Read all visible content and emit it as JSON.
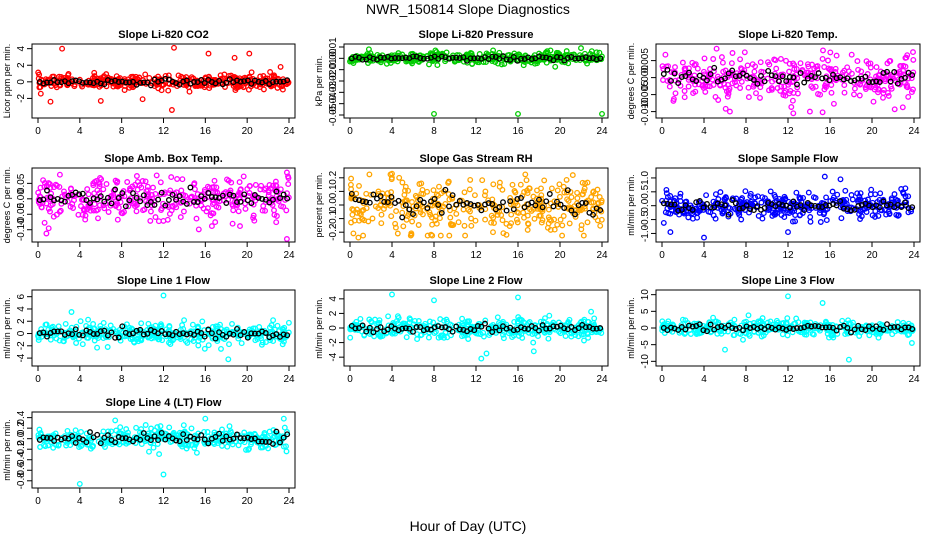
{
  "page_title": "NWR_150814  Slope Diagnostics",
  "x_axis_label": "Hour of Day (UTC)",
  "colors": {
    "co2": "#ff0000",
    "pressure": "#00cc00",
    "li820_temp": "#ff00ff",
    "box_temp": "#ff00ff",
    "rh": "#ffa500",
    "sample_flow": "#0000ff",
    "line_flow": "#00ffff",
    "overlay": "#000000"
  },
  "chart_data": [
    {
      "type": "scatter",
      "key": "co2",
      "title": "Slope Li-820 CO2",
      "xlabel": "",
      "ylabel": "Licor ppm per min.",
      "xlim": [
        0,
        24
      ],
      "ylim": [
        -4,
        4.2
      ],
      "xticks": [
        0,
        4,
        8,
        12,
        16,
        20,
        24
      ],
      "yticks": [
        -2,
        0,
        2,
        4
      ],
      "ytick_labels": [
        "-2",
        "0",
        "2",
        "4"
      ],
      "spread": 0.55,
      "series": [
        {
          "color_key": "co2",
          "values_summary": "dense scatter around 0"
        },
        {
          "color_key": "overlay"
        }
      ],
      "outliers": [
        [
          2.3,
          4.0
        ],
        [
          13,
          4.1
        ],
        [
          12.8,
          -3.4
        ],
        [
          16.3,
          3.4
        ],
        [
          20.2,
          3.4
        ],
        [
          1.2,
          -2.4
        ],
        [
          6.0,
          -2.3
        ],
        [
          10,
          -2.1
        ],
        [
          18.8,
          2.9
        ],
        [
          23.2,
          1.8
        ]
      ]
    },
    {
      "type": "scatter",
      "key": "pressure",
      "title": "Slope Li-820 Pressure",
      "xlabel": "",
      "ylabel": "kPa per min.",
      "xlim": [
        0,
        24
      ],
      "ylim": [
        -0.05,
        0.01
      ],
      "xticks": [
        0,
        4,
        8,
        12,
        16,
        20,
        24
      ],
      "yticks": [
        -0.05,
        -0.04,
        -0.03,
        -0.02,
        -0.01,
        0,
        0.01
      ],
      "ytick_labels": [
        "-0.05",
        "-0.04",
        "-0.03",
        "-0.02",
        "-0.01",
        "0.00",
        "0.01"
      ],
      "spread": 0.0035,
      "series": [
        {
          "color_key": "pressure"
        },
        {
          "color_key": "overlay"
        }
      ],
      "outliers": [
        [
          8,
          -0.049
        ],
        [
          16,
          -0.049
        ],
        [
          24,
          -0.049
        ],
        [
          1.8,
          0.008
        ],
        [
          22,
          0.009
        ]
      ]
    },
    {
      "type": "scatter",
      "key": "li820_temp",
      "title": "Slope Li-820 Temp.",
      "xlabel": "",
      "ylabel": "degrees C per min.",
      "xlim": [
        0,
        24
      ],
      "ylim": [
        -0.011,
        0.009
      ],
      "xticks": [
        0,
        4,
        8,
        12,
        16,
        20,
        24
      ],
      "yticks": [
        -0.01,
        -0.005,
        0,
        0.005
      ],
      "ytick_labels": [
        "-0.010",
        "-0.005",
        "0.000",
        "0.005"
      ],
      "spread": 0.0042,
      "series": [
        {
          "color_key": "li820_temp"
        },
        {
          "color_key": "overlay"
        }
      ],
      "outliers": [
        [
          5.2,
          0.0085
        ],
        [
          12.5,
          -0.0105
        ],
        [
          15.3,
          -0.0102
        ]
      ]
    },
    {
      "type": "scatter",
      "key": "box_temp",
      "title": "Slope Amb. Box Temp.",
      "xlabel": "",
      "ylabel": "degrees C per min.",
      "xlim": [
        0,
        24
      ],
      "ylim": [
        -0.13,
        0.09
      ],
      "xticks": [
        0,
        4,
        8,
        12,
        16,
        20,
        24
      ],
      "yticks": [
        -0.1,
        -0.05,
        0,
        0.05
      ],
      "ytick_labels": [
        "-0.10",
        "-0.05",
        "0.00",
        "0.05"
      ],
      "spread": 0.045,
      "series": [
        {
          "color_key": "box_temp"
        },
        {
          "color_key": "overlay"
        }
      ],
      "outliers": [
        [
          23.8,
          -0.13
        ],
        [
          23.8,
          0.085
        ]
      ]
    },
    {
      "type": "scatter",
      "key": "rh",
      "title": "Slope Gas Stream RH",
      "xlabel": "",
      "ylabel": "percent per min.",
      "xlim": [
        0,
        24
      ],
      "ylim": [
        -0.25,
        0.25
      ],
      "xticks": [
        0,
        4,
        8,
        12,
        16,
        20,
        24
      ],
      "yticks": [
        -0.2,
        -0.1,
        0,
        0.1,
        0.2
      ],
      "ytick_labels": [
        "-0.2",
        "-0.1",
        "0.0",
        "0.1",
        "0.2"
      ],
      "spread": 0.13,
      "series": [
        {
          "color_key": "rh"
        },
        {
          "color_key": "overlay"
        }
      ],
      "outliers": [
        [
          0.8,
          -0.24
        ],
        [
          4,
          0.23
        ]
      ]
    },
    {
      "type": "scatter",
      "key": "sample_flow",
      "title": "Slope Sample Flow",
      "xlabel": "",
      "ylabel": "ml/min per min.",
      "xlim": [
        0,
        24
      ],
      "ylim": [
        -1.2,
        1.25
      ],
      "xticks": [
        0,
        4,
        8,
        12,
        16,
        20,
        24
      ],
      "yticks": [
        -1,
        -0.5,
        0,
        0.5,
        1
      ],
      "ytick_labels": [
        "-1.0",
        "-0.5",
        "0.0",
        "0.5",
        "1.0"
      ],
      "spread": 0.32,
      "series": [
        {
          "color_key": "sample_flow"
        },
        {
          "color_key": "overlay"
        }
      ],
      "outliers": [
        [
          4,
          -1.15
        ],
        [
          0.8,
          -0.95
        ],
        [
          12,
          -0.95
        ],
        [
          15.5,
          1.05
        ],
        [
          17,
          0.95
        ]
      ]
    },
    {
      "type": "scatter",
      "key": "line1",
      "title": "Slope Line 1 Flow",
      "xlabel": "",
      "ylabel": "ml/min per min.",
      "xlim": [
        0,
        24
      ],
      "ylim": [
        -4.8,
        6.6
      ],
      "xticks": [
        0,
        4,
        8,
        12,
        16,
        20,
        24
      ],
      "yticks": [
        -4,
        -2,
        0,
        2,
        4,
        6
      ],
      "ytick_labels": [
        "-4",
        "-2",
        "0",
        "2",
        "4",
        "6"
      ],
      "spread": 1.1,
      "series": [
        {
          "color_key": "line_flow"
        },
        {
          "color_key": "overlay"
        }
      ],
      "outliers": [
        [
          12,
          6.2
        ],
        [
          18.2,
          -4.2
        ],
        [
          3.2,
          3.5
        ],
        [
          17.5,
          -2.5
        ]
      ]
    },
    {
      "type": "scatter",
      "key": "line2",
      "title": "Slope Line 2 Flow",
      "xlabel": "",
      "ylabel": "ml/min per min.",
      "xlim": [
        0,
        24
      ],
      "ylim": [
        -4.8,
        4.8
      ],
      "xticks": [
        0,
        4,
        8,
        12,
        16,
        20,
        24
      ],
      "yticks": [
        -4,
        -2,
        0,
        2,
        4
      ],
      "ytick_labels": [
        "-4",
        "-2",
        "0",
        "2",
        "4"
      ],
      "spread": 0.9,
      "series": [
        {
          "color_key": "line_flow"
        },
        {
          "color_key": "overlay"
        }
      ],
      "outliers": [
        [
          4,
          4.6
        ],
        [
          12.5,
          -4.2
        ],
        [
          13,
          -3.5
        ],
        [
          8,
          3.8
        ],
        [
          17.5,
          -3.2
        ],
        [
          16,
          4.2
        ]
      ]
    },
    {
      "type": "scatter",
      "key": "line3",
      "title": "Slope Line 3 Flow",
      "xlabel": "",
      "ylabel": "ml/min per min.",
      "xlim": [
        0,
        24
      ],
      "ylim": [
        -10.5,
        10.5
      ],
      "xticks": [
        0,
        4,
        8,
        12,
        16,
        20,
        24
      ],
      "yticks": [
        -10,
        -5,
        0,
        5,
        10
      ],
      "ytick_labels": [
        "-10",
        "-5",
        "0",
        "5",
        "10"
      ],
      "spread": 1.6,
      "series": [
        {
          "color_key": "line_flow"
        },
        {
          "color_key": "overlay"
        }
      ],
      "outliers": [
        [
          12,
          9.5
        ],
        [
          17.8,
          -9.5
        ],
        [
          6,
          -6.5
        ],
        [
          23.8,
          -4.5
        ],
        [
          15.3,
          7.5
        ]
      ]
    },
    {
      "type": "scatter",
      "key": "line4",
      "title": "Slope Line 4 (LT) Flow",
      "xlabel": "",
      "ylabel": "ml/min per min.",
      "xlim": [
        0,
        24
      ],
      "ylim": [
        -0.88,
        0.45
      ],
      "xticks": [
        0,
        4,
        8,
        12,
        16,
        20,
        24
      ],
      "yticks": [
        -0.8,
        -0.6,
        -0.4,
        -0.2,
        0,
        0.2,
        0.4
      ],
      "ytick_labels": [
        "-0.8",
        "-0.6",
        "-0.4",
        "-0.2",
        "0.0",
        "0.2",
        "0.4"
      ],
      "spread": 0.14,
      "series": [
        {
          "color_key": "line_flow"
        },
        {
          "color_key": "overlay"
        }
      ],
      "outliers": [
        [
          4,
          -0.86
        ],
        [
          12,
          -0.68
        ],
        [
          16,
          0.38
        ],
        [
          23.5,
          0.38
        ]
      ]
    }
  ]
}
